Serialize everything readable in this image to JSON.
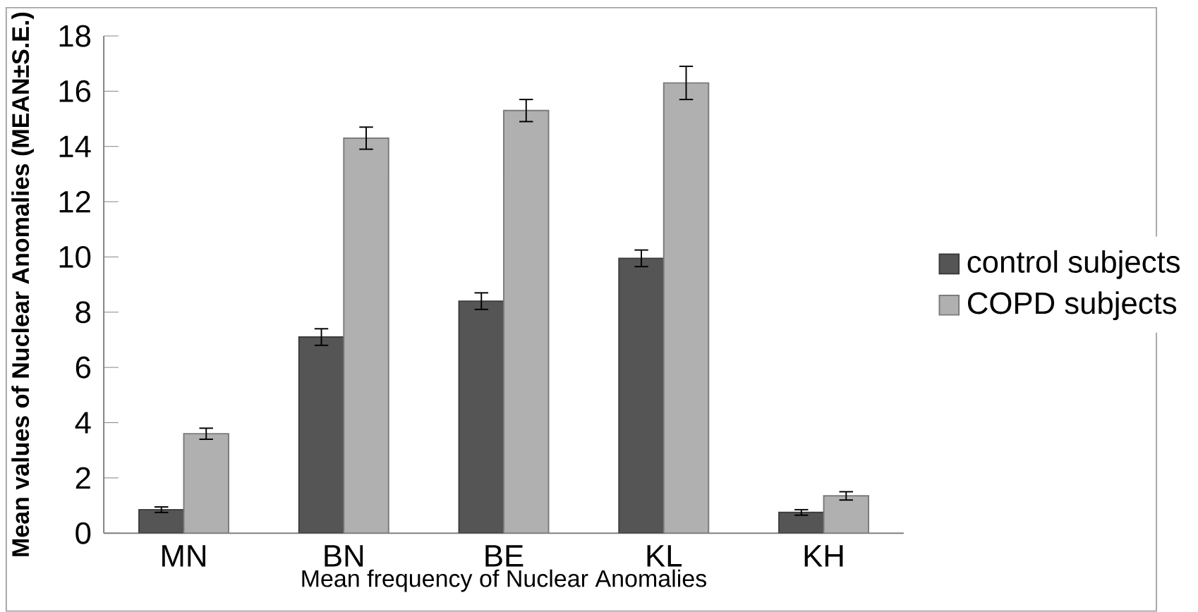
{
  "chart_data": {
    "type": "bar",
    "xlabel": "Mean frequency of Nuclear Anomalies",
    "ylabel": "Mean  values of Nuclear Anomalies (MEAN±S.E.)",
    "categories": [
      "MN",
      "BN",
      "BE",
      "KL",
      "KH"
    ],
    "series": [
      {
        "name": "control subjects",
        "color": "#555555",
        "values": [
          0.85,
          7.1,
          8.4,
          9.95,
          0.75
        ],
        "errors": [
          0.1,
          0.3,
          0.3,
          0.3,
          0.1
        ]
      },
      {
        "name": "COPD subjects",
        "color": "#b0b0b0",
        "values": [
          3.6,
          14.3,
          15.3,
          16.3,
          1.35
        ],
        "errors": [
          0.2,
          0.4,
          0.4,
          0.6,
          0.15
        ]
      }
    ],
    "ylim": [
      0,
      18
    ],
    "yticks": [
      0,
      2,
      4,
      6,
      8,
      10,
      12,
      14,
      16,
      18
    ],
    "grid": false,
    "legend": "right"
  }
}
